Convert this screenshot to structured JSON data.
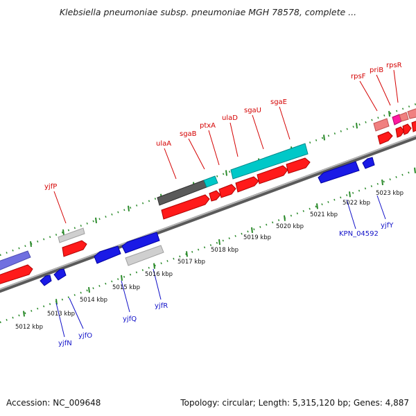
{
  "title": "Klebsiella pneumoniae subsp. pneumoniae MGH 78578, complete ...",
  "footer": {
    "accession": "Accession: NC_009648",
    "summary": "Topology: circular; Length: 5,315,120 bp; Genes: 4,887"
  },
  "colors": {
    "forward_cds": "#ff1a1a",
    "reverse_cds": "#1a1ae6",
    "rrna_teal": "#00c8c8",
    "grey_feature": "#cfcfcf",
    "dark_feature": "#5a5a5a",
    "pink_feature": "#f08080",
    "magenta_feature": "#ff1aa0",
    "purple_feature": "#7070e0",
    "tick_green": "#2a8a2a",
    "backbone": "#8a8a8a",
    "label_top": "#d40000",
    "label_bottom": "#1010c8"
  },
  "scale_ticks": [
    "5012 kbp",
    "5013 kbp",
    "5014 kbp",
    "5015 kbp",
    "5016 kbp",
    "5017 kbp",
    "5018 kbp",
    "5019 kbp",
    "5020 kbp",
    "5021 kbp",
    "5022 kbp",
    "5023 kbp"
  ],
  "top_gene_labels": [
    "yjfP",
    "ulaA",
    "sgaB",
    "ptxA",
    "ulaD",
    "sgaU",
    "sgaE",
    "rpsF",
    "priB",
    "rpsR"
  ],
  "bottom_gene_labels": [
    "yjfN",
    "yjfO",
    "yjfQ",
    "yjfR",
    "KPN_04592",
    "yjfY"
  ]
}
